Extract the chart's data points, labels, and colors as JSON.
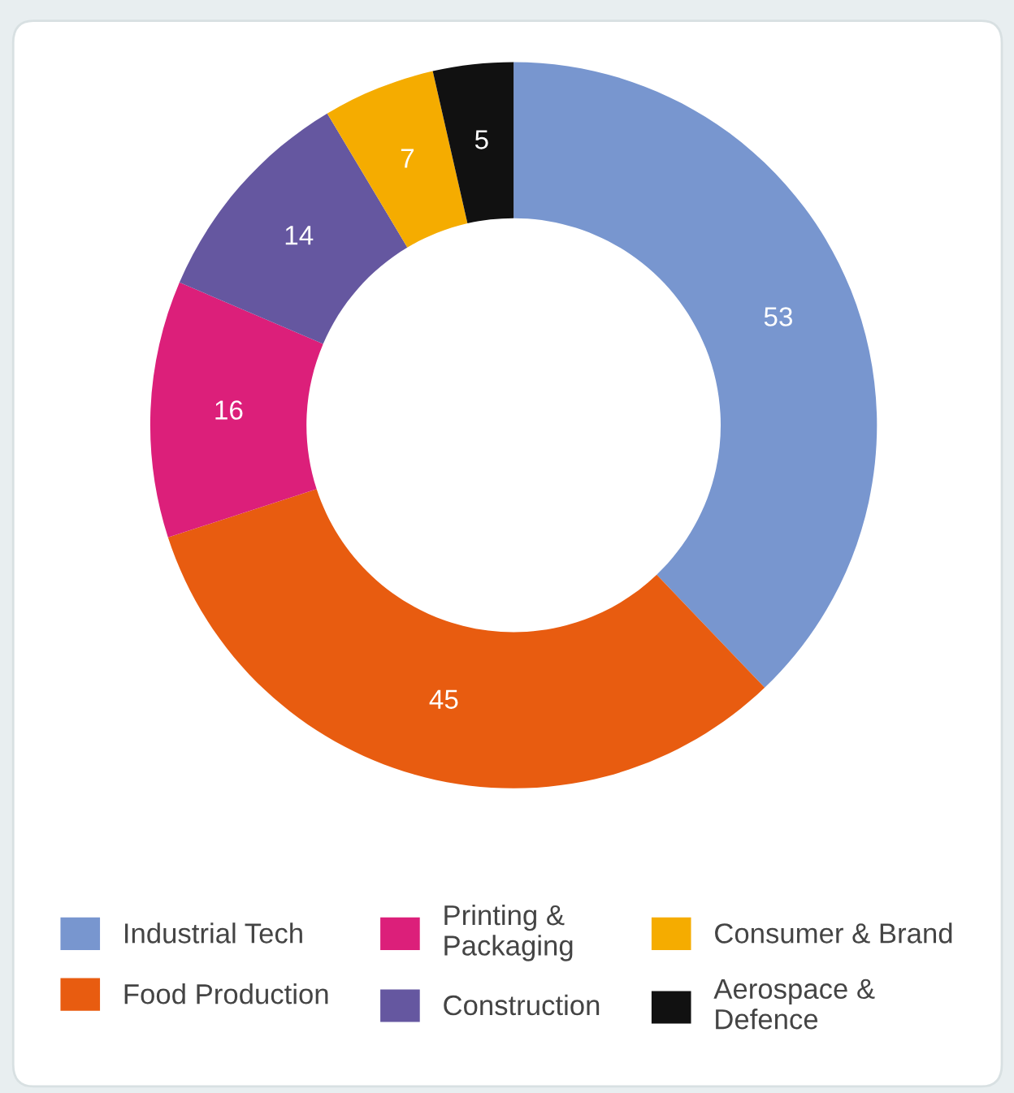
{
  "chart_data": {
    "type": "donut",
    "categories": [
      "Industrial Tech",
      "Food Production",
      "Printing &\nPackaging",
      "Construction",
      "Consumer & Brand",
      "Aerospace &\nDefence"
    ],
    "values": [
      53,
      45,
      16,
      14,
      7,
      5
    ],
    "colors": [
      "#7896cf",
      "#e85c10",
      "#dc1f7a",
      "#6557a0",
      "#f5ac00",
      "#111111"
    ],
    "data_labels": true,
    "legend": "bottom"
  }
}
